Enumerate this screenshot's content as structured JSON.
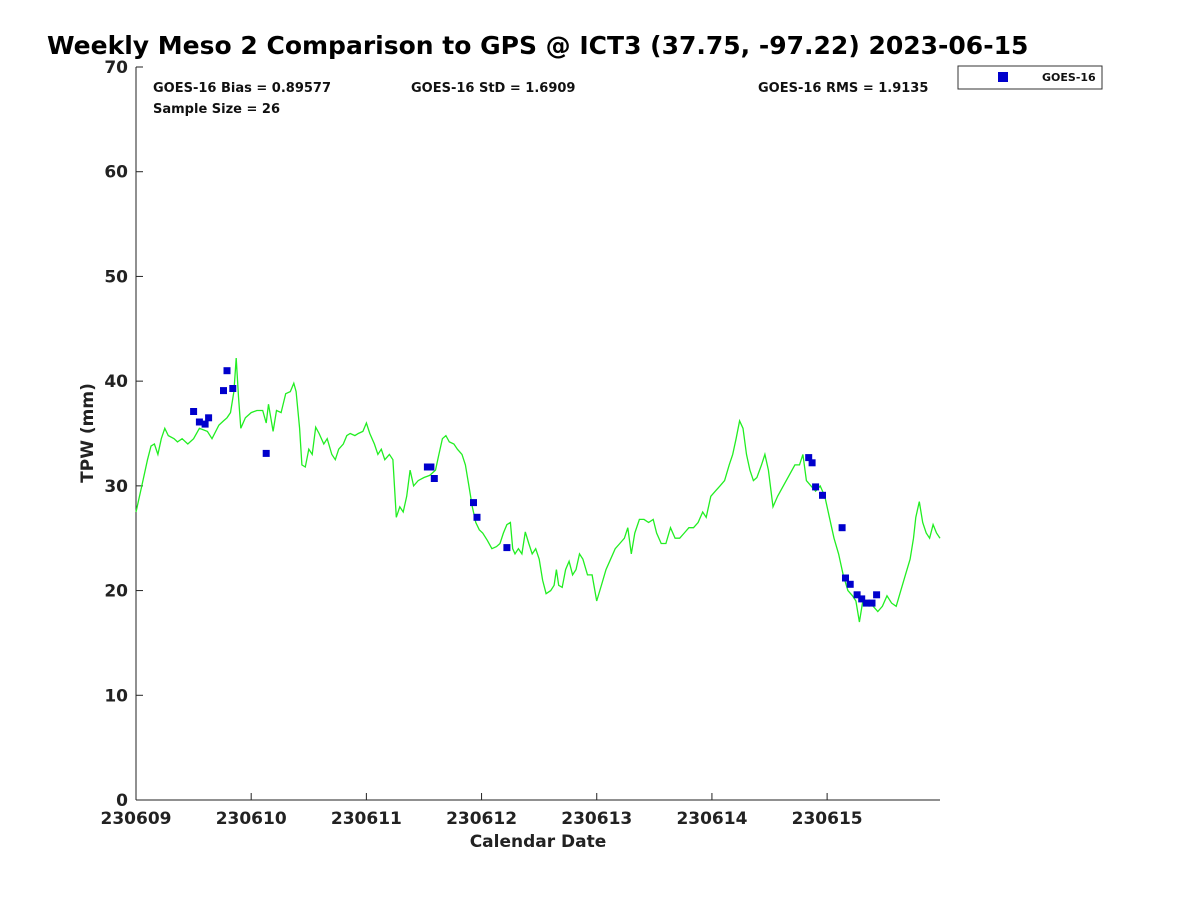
{
  "chart_data": {
    "type": "scatter",
    "title": "Weekly Meso 2 Comparison to GPS @ ICT3 (37.75, -97.22) 2023-06-15",
    "xlabel": "Calendar Date",
    "ylabel": "TPW (mm)",
    "xlim": [
      0,
      6.98
    ],
    "ylim": [
      0,
      70
    ],
    "x_ticks": [
      0,
      1,
      2,
      3,
      4,
      5,
      6
    ],
    "x_tick_labels": [
      "230609",
      "230610",
      "230611",
      "230612",
      "230613",
      "230614",
      "230615"
    ],
    "y_ticks": [
      0,
      10,
      20,
      30,
      40,
      50,
      60,
      70
    ],
    "y_tick_labels": [
      "0",
      "10",
      "20",
      "30",
      "40",
      "50",
      "60",
      "70"
    ],
    "grid": false,
    "legend_position": "outside-top-right",
    "stats": {
      "bias": "GOES-16 Bias = 0.89577",
      "std": "GOES-16 StD = 1.6909",
      "rms": "GOES-16 RMS = 1.9135",
      "sample": "Sample Size = 26"
    },
    "series": [
      {
        "name": "GOES-16",
        "kind": "scatter",
        "color": "#0000cc",
        "points": [
          [
            0.5,
            37.1
          ],
          [
            0.55,
            36.1
          ],
          [
            0.6,
            35.9
          ],
          [
            0.63,
            36.5
          ],
          [
            0.76,
            39.1
          ],
          [
            0.79,
            41.0
          ],
          [
            0.84,
            39.3
          ],
          [
            1.13,
            33.1
          ],
          [
            2.53,
            31.8
          ],
          [
            2.56,
            31.8
          ],
          [
            2.59,
            30.7
          ],
          [
            2.93,
            28.4
          ],
          [
            2.96,
            27.0
          ],
          [
            3.22,
            24.1
          ],
          [
            5.84,
            32.7
          ],
          [
            5.87,
            32.2
          ],
          [
            5.9,
            29.9
          ],
          [
            5.96,
            29.1
          ],
          [
            6.13,
            26.0
          ],
          [
            6.16,
            21.2
          ],
          [
            6.2,
            20.6
          ],
          [
            6.26,
            19.6
          ],
          [
            6.3,
            19.2
          ],
          [
            6.34,
            18.8
          ],
          [
            6.39,
            18.8
          ],
          [
            6.43,
            19.6
          ]
        ]
      },
      {
        "kind": "line",
        "color": "#22ee22",
        "points": [
          [
            0.0,
            27.5
          ],
          [
            0.05,
            30.0
          ],
          [
            0.1,
            32.5
          ],
          [
            0.13,
            33.8
          ],
          [
            0.16,
            34.0
          ],
          [
            0.19,
            33.0
          ],
          [
            0.22,
            34.5
          ],
          [
            0.25,
            35.5
          ],
          [
            0.28,
            34.8
          ],
          [
            0.33,
            34.5
          ],
          [
            0.36,
            34.2
          ],
          [
            0.4,
            34.5
          ],
          [
            0.45,
            34.0
          ],
          [
            0.5,
            34.5
          ],
          [
            0.55,
            35.5
          ],
          [
            0.62,
            35.2
          ],
          [
            0.66,
            34.5
          ],
          [
            0.72,
            35.8
          ],
          [
            0.76,
            36.2
          ],
          [
            0.79,
            36.5
          ],
          [
            0.82,
            37.0
          ],
          [
            0.85,
            39.0
          ],
          [
            0.87,
            42.2
          ],
          [
            0.89,
            38.5
          ],
          [
            0.91,
            35.5
          ],
          [
            0.95,
            36.5
          ],
          [
            1.0,
            37.0
          ],
          [
            1.05,
            37.2
          ],
          [
            1.1,
            37.2
          ],
          [
            1.13,
            36.0
          ],
          [
            1.15,
            37.8
          ],
          [
            1.19,
            35.2
          ],
          [
            1.22,
            37.2
          ],
          [
            1.26,
            37.0
          ],
          [
            1.3,
            38.8
          ],
          [
            1.34,
            39.0
          ],
          [
            1.37,
            39.8
          ],
          [
            1.39,
            39.0
          ],
          [
            1.42,
            35.5
          ],
          [
            1.44,
            32.0
          ],
          [
            1.47,
            31.8
          ],
          [
            1.5,
            33.5
          ],
          [
            1.53,
            33.0
          ],
          [
            1.56,
            35.6
          ],
          [
            1.59,
            35.0
          ],
          [
            1.63,
            34.0
          ],
          [
            1.66,
            34.5
          ],
          [
            1.7,
            33.0
          ],
          [
            1.73,
            32.5
          ],
          [
            1.76,
            33.5
          ],
          [
            1.8,
            34.0
          ],
          [
            1.83,
            34.8
          ],
          [
            1.86,
            35.0
          ],
          [
            1.9,
            34.8
          ],
          [
            1.93,
            35.0
          ],
          [
            1.97,
            35.2
          ],
          [
            2.0,
            36.0
          ],
          [
            2.03,
            35.0
          ],
          [
            2.07,
            34.0
          ],
          [
            2.1,
            33.0
          ],
          [
            2.13,
            33.5
          ],
          [
            2.16,
            32.5
          ],
          [
            2.2,
            33.0
          ],
          [
            2.23,
            32.5
          ],
          [
            2.26,
            27.0
          ],
          [
            2.29,
            28.0
          ],
          [
            2.32,
            27.5
          ],
          [
            2.35,
            29.0
          ],
          [
            2.38,
            31.5
          ],
          [
            2.41,
            30.0
          ],
          [
            2.45,
            30.5
          ],
          [
            2.5,
            30.8
          ],
          [
            2.55,
            31.0
          ],
          [
            2.6,
            31.5
          ],
          [
            2.63,
            33.0
          ],
          [
            2.66,
            34.5
          ],
          [
            2.69,
            34.8
          ],
          [
            2.72,
            34.2
          ],
          [
            2.76,
            34.0
          ],
          [
            2.79,
            33.5
          ],
          [
            2.83,
            33.0
          ],
          [
            2.86,
            32.0
          ],
          [
            2.89,
            30.0
          ],
          [
            2.92,
            28.0
          ],
          [
            2.95,
            26.5
          ],
          [
            2.98,
            25.8
          ],
          [
            3.01,
            25.5
          ],
          [
            3.05,
            24.8
          ],
          [
            3.09,
            24.0
          ],
          [
            3.13,
            24.2
          ],
          [
            3.16,
            24.5
          ],
          [
            3.19,
            25.5
          ],
          [
            3.22,
            26.3
          ],
          [
            3.25,
            26.5
          ],
          [
            3.27,
            24.0
          ],
          [
            3.29,
            23.5
          ],
          [
            3.32,
            24.0
          ],
          [
            3.35,
            23.5
          ],
          [
            3.38,
            25.6
          ],
          [
            3.41,
            24.5
          ],
          [
            3.44,
            23.5
          ],
          [
            3.47,
            24.0
          ],
          [
            3.5,
            23.0
          ],
          [
            3.53,
            21.0
          ],
          [
            3.56,
            19.7
          ],
          [
            3.6,
            20.0
          ],
          [
            3.63,
            20.5
          ],
          [
            3.65,
            22.0
          ],
          [
            3.67,
            20.5
          ],
          [
            3.7,
            20.3
          ],
          [
            3.73,
            22.0
          ],
          [
            3.76,
            22.8
          ],
          [
            3.79,
            21.5
          ],
          [
            3.82,
            22.0
          ],
          [
            3.85,
            23.5
          ],
          [
            3.88,
            23.0
          ],
          [
            3.92,
            21.5
          ],
          [
            3.96,
            21.5
          ],
          [
            4.0,
            19.0
          ],
          [
            4.04,
            20.5
          ],
          [
            4.08,
            22.0
          ],
          [
            4.12,
            23.0
          ],
          [
            4.16,
            24.0
          ],
          [
            4.2,
            24.5
          ],
          [
            4.24,
            25.0
          ],
          [
            4.27,
            26.0
          ],
          [
            4.3,
            23.5
          ],
          [
            4.33,
            25.5
          ],
          [
            4.37,
            26.8
          ],
          [
            4.41,
            26.8
          ],
          [
            4.45,
            26.5
          ],
          [
            4.49,
            26.8
          ],
          [
            4.52,
            25.5
          ],
          [
            4.56,
            24.5
          ],
          [
            4.6,
            24.5
          ],
          [
            4.64,
            26.0
          ],
          [
            4.68,
            25.0
          ],
          [
            4.72,
            25.0
          ],
          [
            4.76,
            25.5
          ],
          [
            4.8,
            26.0
          ],
          [
            4.84,
            26.0
          ],
          [
            4.88,
            26.5
          ],
          [
            4.92,
            27.5
          ],
          [
            4.95,
            27.0
          ],
          [
            4.99,
            29.0
          ],
          [
            5.03,
            29.5
          ],
          [
            5.07,
            30.0
          ],
          [
            5.11,
            30.5
          ],
          [
            5.15,
            32.0
          ],
          [
            5.18,
            33.0
          ],
          [
            5.21,
            34.5
          ],
          [
            5.24,
            36.2
          ],
          [
            5.27,
            35.5
          ],
          [
            5.3,
            33.0
          ],
          [
            5.33,
            31.5
          ],
          [
            5.36,
            30.5
          ],
          [
            5.39,
            30.8
          ],
          [
            5.43,
            32.0
          ],
          [
            5.46,
            33.0
          ],
          [
            5.49,
            31.5
          ],
          [
            5.53,
            28.0
          ],
          [
            5.57,
            29.0
          ],
          [
            5.62,
            30.0
          ],
          [
            5.67,
            31.0
          ],
          [
            5.72,
            32.0
          ],
          [
            5.76,
            32.0
          ],
          [
            5.79,
            33.0
          ],
          [
            5.82,
            30.5
          ],
          [
            5.86,
            30.0
          ],
          [
            5.9,
            29.5
          ],
          [
            5.94,
            30.0
          ],
          [
            5.98,
            29.0
          ],
          [
            6.02,
            27.0
          ],
          [
            6.06,
            25.0
          ],
          [
            6.1,
            23.5
          ],
          [
            6.14,
            21.5
          ],
          [
            6.18,
            20.0
          ],
          [
            6.22,
            19.5
          ],
          [
            6.25,
            19.0
          ],
          [
            6.28,
            17.0
          ],
          [
            6.31,
            19.0
          ],
          [
            6.35,
            19.0
          ],
          [
            6.4,
            18.5
          ],
          [
            6.44,
            18.0
          ],
          [
            6.48,
            18.5
          ],
          [
            6.52,
            19.5
          ],
          [
            6.56,
            18.8
          ],
          [
            6.6,
            18.5
          ],
          [
            6.64,
            20.0
          ],
          [
            6.68,
            21.5
          ],
          [
            6.72,
            23.0
          ],
          [
            6.75,
            25.0
          ],
          [
            6.77,
            27.0
          ],
          [
            6.8,
            28.5
          ],
          [
            6.83,
            26.5
          ],
          [
            6.86,
            25.5
          ],
          [
            6.89,
            25.0
          ],
          [
            6.92,
            26.3
          ],
          [
            6.95,
            25.5
          ],
          [
            6.98,
            25.0
          ]
        ]
      }
    ]
  }
}
